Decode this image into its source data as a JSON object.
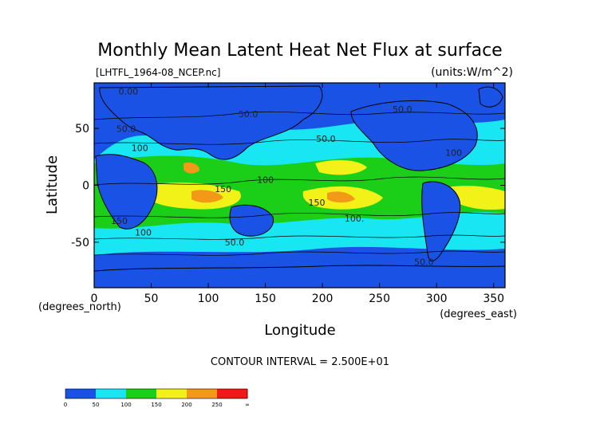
{
  "chart_data": {
    "type": "heatmap",
    "title": "Monthly Mean Latent Heat Net Flux at surface",
    "file_label": "[LHTFL_1964-08_NCEP.nc]",
    "units_label": "(units:W/m^2)",
    "xlabel": "Longitude",
    "ylabel": "Latitude",
    "x_unit_note": "(degrees_east)",
    "y_unit_note": "(degrees_north)",
    "xlim": [
      0,
      360
    ],
    "ylim": [
      -90,
      90
    ],
    "x_ticks": [
      0,
      50,
      100,
      150,
      200,
      250,
      300,
      350
    ],
    "y_ticks": [
      50,
      0,
      -50
    ],
    "contour_interval_label": "CONTOUR INTERVAL = 2.500E+01",
    "contour_labels": [
      {
        "text": "0.00",
        "lon": 30,
        "lat": 80
      },
      {
        "text": "50.0",
        "lon": 135,
        "lat": 60
      },
      {
        "text": "50.0",
        "lon": 270,
        "lat": 64
      },
      {
        "text": "50.0",
        "lon": 28,
        "lat": 47
      },
      {
        "text": "50.0",
        "lon": 203,
        "lat": 38
      },
      {
        "text": "100",
        "lon": 40,
        "lat": 30
      },
      {
        "text": "100",
        "lon": 315,
        "lat": 26
      },
      {
        "text": "100",
        "lon": 150,
        "lat": 2
      },
      {
        "text": "150",
        "lon": 113,
        "lat": -6
      },
      {
        "text": "150",
        "lon": 195,
        "lat": -18
      },
      {
        "text": "100.",
        "lon": 228,
        "lat": -32
      },
      {
        "text": "150",
        "lon": 22,
        "lat": -34
      },
      {
        "text": "100",
        "lon": 43,
        "lat": -44
      },
      {
        "text": "50.0",
        "lon": 123,
        "lat": -53
      },
      {
        "text": "50.0",
        "lon": 289,
        "lat": -70
      }
    ],
    "colorbar": {
      "colors": [
        "#1a52e6",
        "#1a52e6",
        "#18e6f2",
        "#18e6f2",
        "#1bcf18",
        "#1bcf18",
        "#f2f218",
        "#f2f218",
        "#f29a18",
        "#f29a18",
        "#f21818",
        "#f21818"
      ],
      "tick_labels": [
        "0",
        "50",
        "100",
        "150",
        "200",
        "250",
        "∞"
      ]
    }
  }
}
